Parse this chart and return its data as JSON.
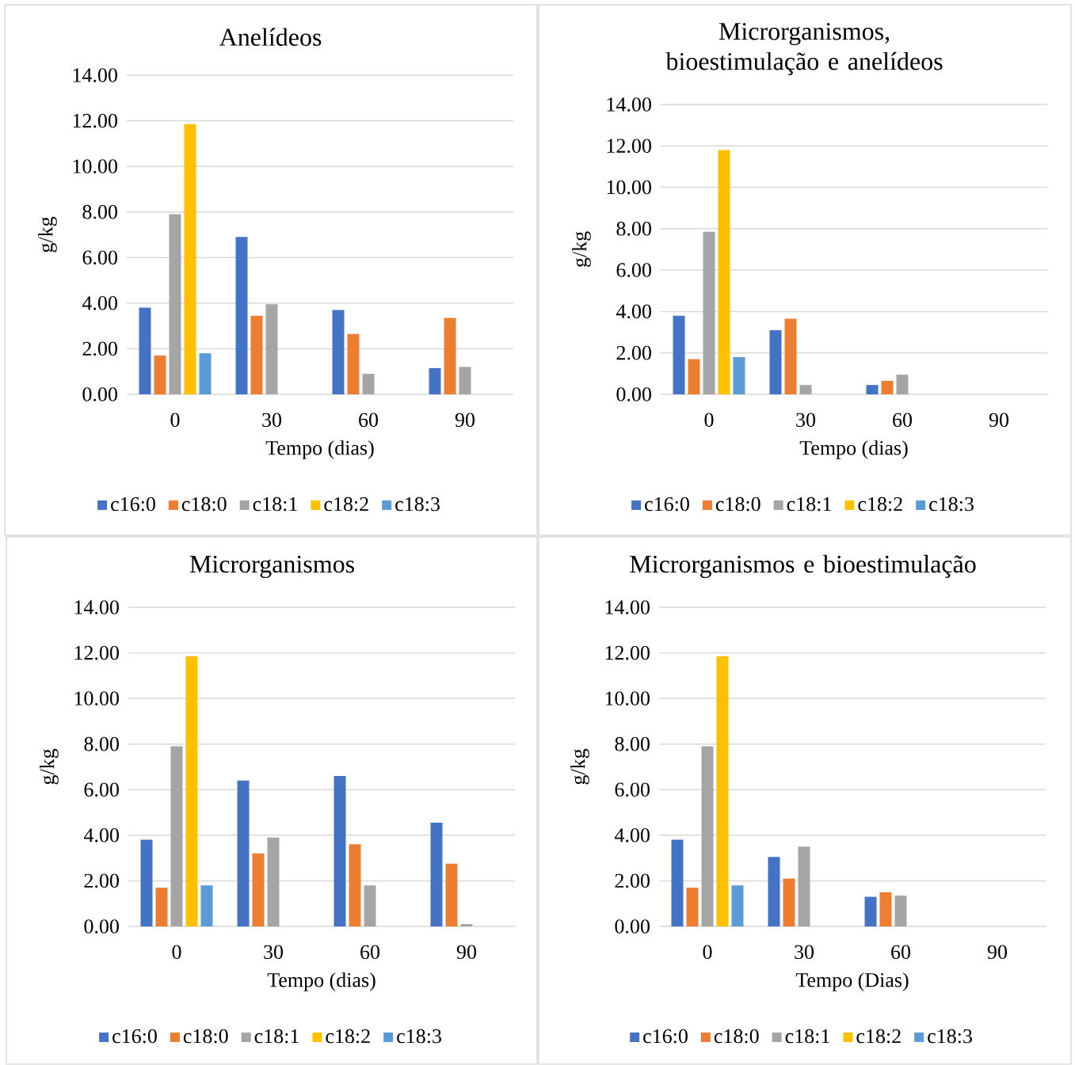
{
  "chart_data": [
    {
      "type": "bar",
      "title": "Anelídeos",
      "xlabel": "Tempo (dias)",
      "ylabel": "g/kg",
      "categories": [
        "0",
        "30",
        "60",
        "90"
      ],
      "ylim": [
        0,
        14
      ],
      "yticks": [
        {
          "value": 0,
          "label": "0.00"
        },
        {
          "value": 2,
          "label": "2.00"
        },
        {
          "value": 4,
          "label": "4.00"
        },
        {
          "value": 6,
          "label": "6.00"
        },
        {
          "value": 8,
          "label": "8.00"
        },
        {
          "value": 10,
          "label": "10.00"
        },
        {
          "value": 12,
          "label": "12.00"
        },
        {
          "value": 14,
          "label": "14.00"
        }
      ],
      "grid": "y",
      "legend": "bottom",
      "series": [
        {
          "name": "c16:0",
          "color": "#4472c4",
          "values": [
            3.8,
            6.9,
            3.7,
            1.15
          ]
        },
        {
          "name": "c18:0",
          "color": "#ed7d31",
          "values": [
            1.7,
            3.45,
            2.65,
            3.35
          ]
        },
        {
          "name": "c18:1",
          "color": "#a5a5a5",
          "values": [
            7.9,
            3.95,
            0.9,
            1.2
          ]
        },
        {
          "name": "c18:2",
          "color": "#ffc000",
          "values": [
            11.85,
            null,
            null,
            null
          ]
        },
        {
          "name": "c18:3",
          "color": "#5b9bd5",
          "values": [
            1.8,
            null,
            null,
            null
          ]
        }
      ]
    },
    {
      "type": "bar",
      "title": "Microrganismos, bioestimulação e anelídeos",
      "xlabel": "Tempo (dias)",
      "ylabel": "g/kg",
      "categories": [
        "0",
        "30",
        "60",
        "90"
      ],
      "ylim": [
        0,
        14
      ],
      "yticks": [
        {
          "value": 0,
          "label": "0.00"
        },
        {
          "value": 2,
          "label": "2.00"
        },
        {
          "value": 4,
          "label": "4.00"
        },
        {
          "value": 6,
          "label": "6.00"
        },
        {
          "value": 8,
          "label": "8.00"
        },
        {
          "value": 10,
          "label": "10.00"
        },
        {
          "value": 12,
          "label": "12.00"
        },
        {
          "value": 14,
          "label": "14.00"
        }
      ],
      "grid": "y",
      "legend": "bottom",
      "series": [
        {
          "name": "c16:0",
          "color": "#4472c4",
          "values": [
            3.8,
            3.1,
            0.45,
            null
          ]
        },
        {
          "name": "c18:0",
          "color": "#ed7d31",
          "values": [
            1.7,
            3.65,
            0.65,
            null
          ]
        },
        {
          "name": "c18:1",
          "color": "#a5a5a5",
          "values": [
            7.85,
            0.45,
            0.95,
            null
          ]
        },
        {
          "name": "c18:2",
          "color": "#ffc000",
          "values": [
            11.8,
            null,
            null,
            null
          ]
        },
        {
          "name": "c18:3",
          "color": "#5b9bd5",
          "values": [
            1.8,
            null,
            null,
            null
          ]
        }
      ]
    },
    {
      "type": "bar",
      "title": "Microrganismos",
      "xlabel": "Tempo (dias)",
      "ylabel": "g/kg",
      "categories": [
        "0",
        "30",
        "60",
        "90"
      ],
      "ylim": [
        0,
        14
      ],
      "yticks": [
        {
          "value": 0,
          "label": "0.00"
        },
        {
          "value": 2,
          "label": "2.00"
        },
        {
          "value": 4,
          "label": "4.00"
        },
        {
          "value": 6,
          "label": "6.00"
        },
        {
          "value": 8,
          "label": "8.00"
        },
        {
          "value": 10,
          "label": "10.00"
        },
        {
          "value": 12,
          "label": "12.00"
        },
        {
          "value": 14,
          "label": "14.00"
        }
      ],
      "grid": "y",
      "legend": "bottom",
      "series": [
        {
          "name": "c16:0",
          "color": "#4472c4",
          "values": [
            3.8,
            6.4,
            6.6,
            4.55
          ]
        },
        {
          "name": "c18:0",
          "color": "#ed7d31",
          "values": [
            1.7,
            3.2,
            3.6,
            2.75
          ]
        },
        {
          "name": "c18:1",
          "color": "#a5a5a5",
          "values": [
            7.9,
            3.9,
            1.8,
            0.1
          ]
        },
        {
          "name": "c18:2",
          "color": "#ffc000",
          "values": [
            11.85,
            null,
            null,
            null
          ]
        },
        {
          "name": "c18:3",
          "color": "#5b9bd5",
          "values": [
            1.8,
            null,
            null,
            null
          ]
        }
      ]
    },
    {
      "type": "bar",
      "title": "Microrganismos e bioestimulação",
      "xlabel": "Tempo (Dias)",
      "ylabel": "g/kg",
      "categories": [
        "0",
        "30",
        "60",
        "90"
      ],
      "ylim": [
        0,
        14
      ],
      "yticks": [
        {
          "value": 0,
          "label": "0.00"
        },
        {
          "value": 2,
          "label": "2.00"
        },
        {
          "value": 4,
          "label": "4.00"
        },
        {
          "value": 6,
          "label": "6.00"
        },
        {
          "value": 8,
          "label": "8.00"
        },
        {
          "value": 10,
          "label": "10.00"
        },
        {
          "value": 12,
          "label": "12.00"
        },
        {
          "value": 14,
          "label": "14.00"
        }
      ],
      "grid": "y",
      "legend": "bottom",
      "series": [
        {
          "name": "c16:0",
          "color": "#4472c4",
          "values": [
            3.8,
            3.05,
            1.3,
            null
          ]
        },
        {
          "name": "c18:0",
          "color": "#ed7d31",
          "values": [
            1.7,
            2.1,
            1.5,
            null
          ]
        },
        {
          "name": "c18:1",
          "color": "#a5a5a5",
          "values": [
            7.9,
            3.5,
            1.35,
            null
          ]
        },
        {
          "name": "c18:2",
          "color": "#ffc000",
          "values": [
            11.85,
            null,
            null,
            null
          ]
        },
        {
          "name": "c18:3",
          "color": "#5b9bd5",
          "values": [
            1.8,
            null,
            null,
            null
          ]
        }
      ]
    }
  ]
}
